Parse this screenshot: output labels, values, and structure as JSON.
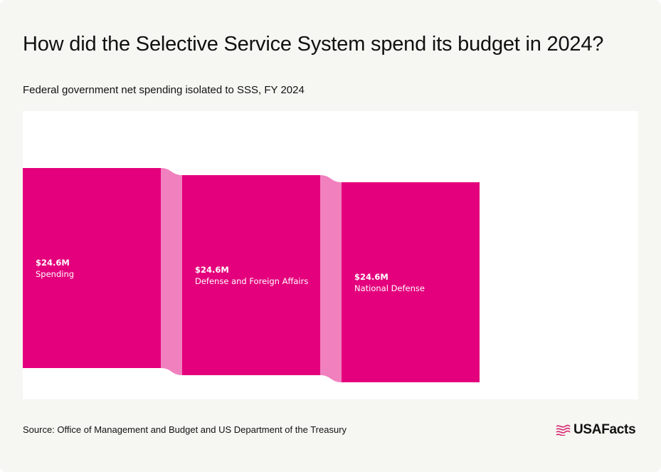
{
  "header": {
    "title": "How did the Selective Service System spend its budget in 2024?",
    "subtitle": "Federal government net spending isolated to SSS, FY 2024"
  },
  "footer": {
    "source": "Source: Office of Management and Budget and US Department of the Treasury",
    "logo_text": "USAFacts"
  },
  "colors": {
    "node": "#e4007c",
    "flow": "#f180bf",
    "background": "#f6f6f2",
    "panel": "#ffffff"
  },
  "chart_data": {
    "type": "sankey",
    "title": "How did the Selective Service System spend its budget in 2024?",
    "subtitle": "Federal government net spending isolated to SSS, FY 2024",
    "unit": "$M",
    "nodes": [
      {
        "id": "spending",
        "name": "Spending",
        "value": 24.6,
        "value_label": "$24.6M",
        "level": 0
      },
      {
        "id": "defense-foreign",
        "name": "Defense and Foreign Affairs",
        "value": 24.6,
        "value_label": "$24.6M",
        "level": 1
      },
      {
        "id": "national-defense",
        "name": "National Defense",
        "value": 24.6,
        "value_label": "$24.6M",
        "level": 2
      }
    ],
    "links": [
      {
        "source": "spending",
        "target": "defense-foreign",
        "value": 24.6
      },
      {
        "source": "defense-foreign",
        "target": "national-defense",
        "value": 24.6
      }
    ]
  }
}
